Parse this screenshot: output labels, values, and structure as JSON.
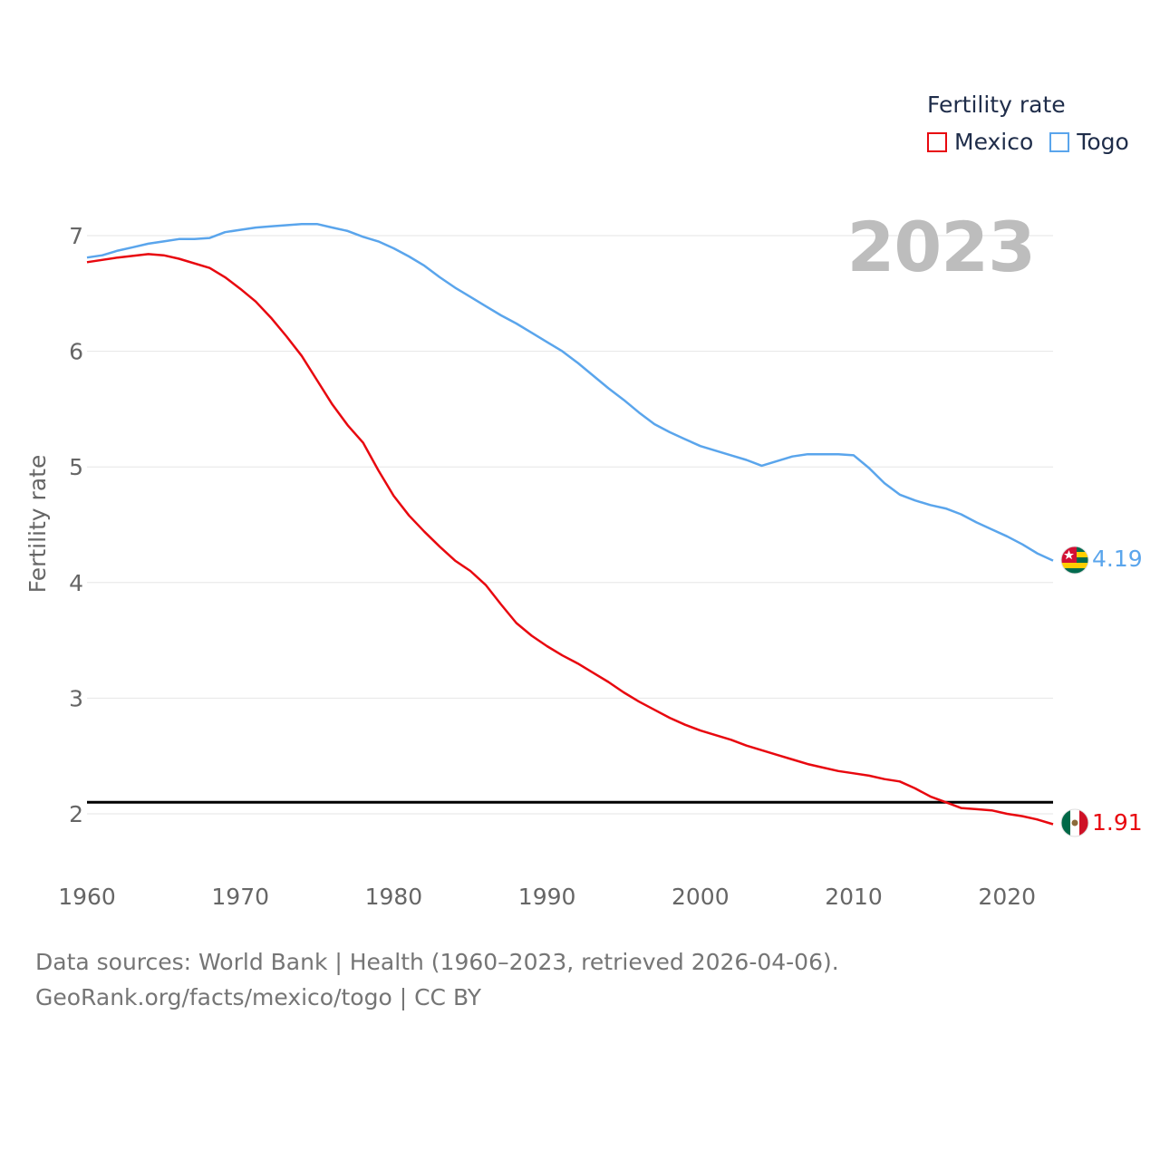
{
  "chart_data": {
    "type": "line",
    "title": "",
    "ylabel": "Fertility rate",
    "xlabel": "",
    "xlim": [
      1960,
      2023
    ],
    "ylim": [
      1.5,
      7.3
    ],
    "x_ticks": [
      1960,
      1970,
      1980,
      1990,
      2000,
      2010,
      2020
    ],
    "y_ticks": [
      2,
      3,
      4,
      5,
      6,
      7
    ],
    "grid": true,
    "reference_line": 2.1,
    "current_year": "2023",
    "legend": {
      "title": "Fertility rate",
      "position": "top-right"
    },
    "series": [
      {
        "name": "Mexico",
        "color": "#e8080f",
        "end_label": "1.91",
        "flag_icon": "mexico-flag-icon",
        "points": [
          [
            1960,
            6.77
          ],
          [
            1962,
            6.81
          ],
          [
            1964,
            6.84
          ],
          [
            1965,
            6.83
          ],
          [
            1966,
            6.8
          ],
          [
            1968,
            6.72
          ],
          [
            1969,
            6.64
          ],
          [
            1970,
            6.54
          ],
          [
            1971,
            6.43
          ],
          [
            1972,
            6.29
          ],
          [
            1973,
            6.13
          ],
          [
            1974,
            5.96
          ],
          [
            1975,
            5.75
          ],
          [
            1976,
            5.54
          ],
          [
            1977,
            5.36
          ],
          [
            1978,
            5.21
          ],
          [
            1979,
            4.97
          ],
          [
            1980,
            4.75
          ],
          [
            1981,
            4.58
          ],
          [
            1982,
            4.44
          ],
          [
            1983,
            4.31
          ],
          [
            1984,
            4.19
          ],
          [
            1985,
            4.1
          ],
          [
            1986,
            3.98
          ],
          [
            1987,
            3.81
          ],
          [
            1988,
            3.65
          ],
          [
            1989,
            3.54
          ],
          [
            1990,
            3.45
          ],
          [
            1991,
            3.37
          ],
          [
            1992,
            3.3
          ],
          [
            1993,
            3.22
          ],
          [
            1994,
            3.14
          ],
          [
            1995,
            3.05
          ],
          [
            1996,
            2.97
          ],
          [
            1997,
            2.9
          ],
          [
            1998,
            2.83
          ],
          [
            1999,
            2.77
          ],
          [
            2000,
            2.72
          ],
          [
            2001,
            2.68
          ],
          [
            2002,
            2.64
          ],
          [
            2003,
            2.59
          ],
          [
            2004,
            2.55
          ],
          [
            2005,
            2.51
          ],
          [
            2006,
            2.47
          ],
          [
            2007,
            2.43
          ],
          [
            2008,
            2.4
          ],
          [
            2009,
            2.37
          ],
          [
            2010,
            2.35
          ],
          [
            2011,
            2.33
          ],
          [
            2012,
            2.3
          ],
          [
            2013,
            2.28
          ],
          [
            2014,
            2.22
          ],
          [
            2015,
            2.15
          ],
          [
            2016,
            2.1
          ],
          [
            2017,
            2.05
          ],
          [
            2018,
            2.04
          ],
          [
            2019,
            2.03
          ],
          [
            2020,
            2.0
          ],
          [
            2021,
            1.98
          ],
          [
            2022,
            1.95
          ],
          [
            2023,
            1.91
          ]
        ]
      },
      {
        "name": "Togo",
        "color": "#5aa5ec",
        "end_label": "4.19",
        "flag_icon": "togo-flag-icon",
        "points": [
          [
            1960,
            6.81
          ],
          [
            1961,
            6.83
          ],
          [
            1962,
            6.87
          ],
          [
            1963,
            6.9
          ],
          [
            1964,
            6.93
          ],
          [
            1965,
            6.95
          ],
          [
            1966,
            6.97
          ],
          [
            1967,
            6.97
          ],
          [
            1968,
            6.98
          ],
          [
            1969,
            7.03
          ],
          [
            1970,
            7.05
          ],
          [
            1971,
            7.07
          ],
          [
            1972,
            7.08
          ],
          [
            1973,
            7.09
          ],
          [
            1974,
            7.1
          ],
          [
            1975,
            7.1
          ],
          [
            1976,
            7.07
          ],
          [
            1977,
            7.04
          ],
          [
            1978,
            6.99
          ],
          [
            1979,
            6.95
          ],
          [
            1980,
            6.89
          ],
          [
            1981,
            6.82
          ],
          [
            1982,
            6.74
          ],
          [
            1983,
            6.64
          ],
          [
            1984,
            6.55
          ],
          [
            1985,
            6.47
          ],
          [
            1986,
            6.39
          ],
          [
            1987,
            6.31
          ],
          [
            1988,
            6.24
          ],
          [
            1989,
            6.16
          ],
          [
            1990,
            6.08
          ],
          [
            1991,
            6.0
          ],
          [
            1992,
            5.9
          ],
          [
            1993,
            5.79
          ],
          [
            1994,
            5.68
          ],
          [
            1995,
            5.58
          ],
          [
            1996,
            5.47
          ],
          [
            1997,
            5.37
          ],
          [
            1998,
            5.3
          ],
          [
            1999,
            5.24
          ],
          [
            2000,
            5.18
          ],
          [
            2001,
            5.14
          ],
          [
            2002,
            5.1
          ],
          [
            2003,
            5.06
          ],
          [
            2004,
            5.01
          ],
          [
            2005,
            5.05
          ],
          [
            2006,
            5.09
          ],
          [
            2007,
            5.11
          ],
          [
            2008,
            5.11
          ],
          [
            2009,
            5.11
          ],
          [
            2010,
            5.1
          ],
          [
            2011,
            4.99
          ],
          [
            2012,
            4.86
          ],
          [
            2013,
            4.76
          ],
          [
            2014,
            4.71
          ],
          [
            2015,
            4.67
          ],
          [
            2016,
            4.64
          ],
          [
            2017,
            4.59
          ],
          [
            2018,
            4.52
          ],
          [
            2019,
            4.46
          ],
          [
            2020,
            4.4
          ],
          [
            2021,
            4.33
          ],
          [
            2022,
            4.25
          ],
          [
            2023,
            4.19
          ]
        ]
      }
    ]
  },
  "footer": {
    "line1": "Data sources: World Bank | Health (1960–2023, retrieved 2026-04-06).",
    "line2": "GeoRank.org/facts/mexico/togo | CC BY"
  },
  "colors": {
    "grid": "#e6e6e6",
    "tick_text": "#666666",
    "axis_title": "#666666",
    "reference_line": "#000000",
    "year_label": "#bdbdbd",
    "legend_text": "#1f2d4a"
  }
}
